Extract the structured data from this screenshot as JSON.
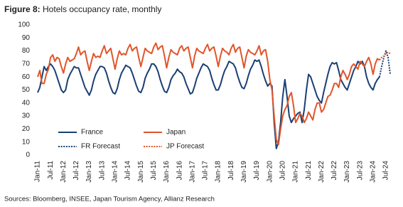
{
  "chart_data": {
    "type": "line",
    "title_label": "Figure 8:",
    "title": "Hotels occupancy rate, monthly",
    "source": "Sources: Bloomberg, INSEE, Japan Tourism Agency, Allianz Research",
    "legend": "lower left",
    "grid": false,
    "ylim": [
      0,
      100
    ],
    "yticks": [
      0,
      10,
      20,
      30,
      40,
      50,
      60,
      70,
      80,
      90,
      100
    ],
    "categories": [
      "Jan-11",
      null,
      null,
      null,
      null,
      null,
      "Jul-11",
      null,
      null,
      null,
      null,
      null,
      "Jan-12",
      null,
      null,
      null,
      null,
      null,
      "Jul-12",
      null,
      null,
      null,
      null,
      null,
      "Jan-13",
      null,
      null,
      null,
      null,
      null,
      "Jul-13",
      null,
      null,
      null,
      null,
      null,
      "Jan-14",
      null,
      null,
      null,
      null,
      null,
      "Jul-14",
      null,
      null,
      null,
      null,
      null,
      "Jan-15",
      null,
      null,
      null,
      null,
      null,
      "Jul-15",
      null,
      null,
      null,
      null,
      null,
      "Jan-16",
      null,
      null,
      null,
      null,
      null,
      "Jul-16",
      null,
      null,
      null,
      null,
      null,
      "Jan-17",
      null,
      null,
      null,
      null,
      null,
      "Jul-17",
      null,
      null,
      null,
      null,
      null,
      "Jan-18",
      null,
      null,
      null,
      null,
      null,
      "Jul-18",
      null,
      null,
      null,
      null,
      null,
      "Jan-19",
      null,
      null,
      null,
      null,
      null,
      "Jul-19",
      null,
      null,
      null,
      null,
      null,
      "Jan-20",
      null,
      null,
      null,
      null,
      null,
      "Jul-20",
      null,
      null,
      null,
      null,
      null,
      "Jan-21",
      null,
      null,
      null,
      null,
      null,
      "Jul-21",
      null,
      null,
      null,
      null,
      null,
      "Jan-22",
      null,
      null,
      null,
      null,
      null,
      "Jul-22",
      null,
      null,
      null,
      null,
      null,
      "Jan-23",
      null,
      null,
      null,
      null,
      null,
      "Jul-23",
      null,
      null,
      null,
      null,
      null,
      "Jan-24",
      null,
      null,
      null,
      null,
      null,
      "Jul-24",
      null,
      null
    ],
    "series": [
      {
        "name": "France",
        "color": "#1b3f72",
        "dash": "solid",
        "values": [
          48,
          52,
          60,
          68,
          65,
          68,
          70,
          68,
          65,
          60,
          55,
          50,
          48,
          50,
          58,
          62,
          65,
          68,
          67,
          67,
          62,
          57,
          52,
          49,
          46,
          50,
          57,
          62,
          65,
          68,
          68,
          67,
          63,
          57,
          52,
          48,
          47,
          51,
          58,
          63,
          66,
          69,
          68,
          67,
          63,
          58,
          53,
          49,
          48,
          52,
          59,
          63,
          66,
          70,
          70,
          68,
          64,
          58,
          53,
          49,
          48,
          52,
          58,
          61,
          63,
          66,
          64,
          63,
          60,
          55,
          51,
          47,
          48,
          53,
          59,
          63,
          67,
          70,
          69,
          68,
          65,
          59,
          54,
          50,
          50,
          54,
          60,
          65,
          68,
          72,
          71,
          70,
          67,
          61,
          56,
          52,
          51,
          55,
          61,
          66,
          69,
          73,
          72,
          73,
          68,
          62,
          57,
          53,
          55,
          53,
          25,
          5,
          10,
          25,
          45,
          58,
          45,
          30,
          25,
          28,
          30,
          32,
          33,
          25,
          35,
          50,
          62,
          60,
          55,
          50,
          45,
          42,
          40,
          48,
          55,
          62,
          68,
          71,
          70,
          71,
          65,
          58,
          55,
          52,
          50,
          55,
          60,
          65,
          68,
          72,
          70,
          72,
          68,
          60,
          55,
          52,
          50,
          55,
          58,
          60,
          null,
          null,
          null,
          null,
          null
        ]
      },
      {
        "name": "Japan",
        "color": "#e0552a",
        "dash": "solid",
        "values": [
          60,
          65,
          55,
          55,
          62,
          66,
          75,
          77,
          72,
          75,
          74,
          68,
          63,
          70,
          75,
          72,
          73,
          74,
          78,
          83,
          77,
          79,
          80,
          72,
          65,
          72,
          78,
          75,
          76,
          75,
          80,
          84,
          78,
          80,
          82,
          74,
          66,
          74,
          80,
          77,
          78,
          77,
          82,
          85,
          80,
          82,
          83,
          75,
          68,
          75,
          82,
          80,
          79,
          78,
          83,
          86,
          81,
          83,
          84,
          76,
          67,
          75,
          81,
          79,
          78,
          77,
          82,
          84,
          80,
          82,
          83,
          75,
          67,
          76,
          82,
          80,
          79,
          78,
          82,
          85,
          80,
          82,
          83,
          76,
          68,
          76,
          82,
          80,
          79,
          77,
          82,
          85,
          79,
          82,
          83,
          75,
          67,
          76,
          81,
          79,
          78,
          77,
          80,
          84,
          77,
          80,
          81,
          72,
          58,
          50,
          30,
          12,
          8,
          20,
          30,
          35,
          38,
          45,
          48,
          38,
          25,
          28,
          32,
          30,
          25,
          28,
          33,
          30,
          27,
          35,
          40,
          40,
          33,
          35,
          40,
          45,
          46,
          50,
          55,
          55,
          52,
          60,
          65,
          62,
          58,
          62,
          68,
          70,
          68,
          66,
          72,
          70,
          68,
          72,
          75,
          70,
          62,
          70,
          74,
          73,
          null,
          null,
          null,
          null,
          null
        ]
      },
      {
        "name": "FR Forecast",
        "color": "#1b3f72",
        "dash": "dotted",
        "values": [
          null,
          null,
          null,
          null,
          null,
          null,
          null,
          null,
          null,
          null,
          null,
          null,
          null,
          null,
          null,
          null,
          null,
          null,
          null,
          null,
          null,
          null,
          null,
          null,
          null,
          null,
          null,
          null,
          null,
          null,
          null,
          null,
          null,
          null,
          null,
          null,
          null,
          null,
          null,
          null,
          null,
          null,
          null,
          null,
          null,
          null,
          null,
          null,
          null,
          null,
          null,
          null,
          null,
          null,
          null,
          null,
          null,
          null,
          null,
          null,
          null,
          null,
          null,
          null,
          null,
          null,
          null,
          null,
          null,
          null,
          null,
          null,
          null,
          null,
          null,
          null,
          null,
          null,
          null,
          null,
          null,
          null,
          null,
          null,
          null,
          null,
          null,
          null,
          null,
          null,
          null,
          null,
          null,
          null,
          null,
          null,
          null,
          null,
          null,
          null,
          null,
          null,
          null,
          null,
          null,
          null,
          null,
          null,
          null,
          null,
          null,
          null,
          null,
          null,
          null,
          null,
          null,
          null,
          null,
          null,
          null,
          null,
          null,
          null,
          null,
          null,
          null,
          null,
          null,
          null,
          null,
          null,
          null,
          null,
          null,
          null,
          null,
          null,
          null,
          null,
          null,
          null,
          null,
          null,
          null,
          null,
          null,
          null,
          null,
          null,
          null,
          null,
          null,
          null,
          null,
          null,
          null,
          null,
          null,
          60,
          68,
          75,
          80,
          75,
          62
        ]
      },
      {
        "name": "JP Forecast",
        "color": "#e0552a",
        "dash": "dotted",
        "values": [
          null,
          null,
          null,
          null,
          null,
          null,
          null,
          null,
          null,
          null,
          null,
          null,
          null,
          null,
          null,
          null,
          null,
          null,
          null,
          null,
          null,
          null,
          null,
          null,
          null,
          null,
          null,
          null,
          null,
          null,
          null,
          null,
          null,
          null,
          null,
          null,
          null,
          null,
          null,
          null,
          null,
          null,
          null,
          null,
          null,
          null,
          null,
          null,
          null,
          null,
          null,
          null,
          null,
          null,
          null,
          null,
          null,
          null,
          null,
          null,
          null,
          null,
          null,
          null,
          null,
          null,
          null,
          null,
          null,
          null,
          null,
          null,
          null,
          null,
          null,
          null,
          null,
          null,
          null,
          null,
          null,
          null,
          null,
          null,
          null,
          null,
          null,
          null,
          null,
          null,
          null,
          null,
          null,
          null,
          null,
          null,
          null,
          null,
          null,
          null,
          null,
          null,
          null,
          null,
          null,
          null,
          null,
          null,
          null,
          null,
          null,
          null,
          null,
          null,
          null,
          null,
          null,
          null,
          null,
          null,
          null,
          null,
          null,
          null,
          null,
          null,
          null,
          null,
          null,
          null,
          null,
          null,
          null,
          null,
          null,
          null,
          null,
          null,
          null,
          null,
          null,
          null,
          null,
          null,
          null,
          null,
          null,
          null,
          null,
          null,
          null,
          null,
          null,
          null,
          null,
          null,
          null,
          null,
          null,
          73,
          75,
          76,
          78,
          79,
          78
        ]
      }
    ]
  }
}
